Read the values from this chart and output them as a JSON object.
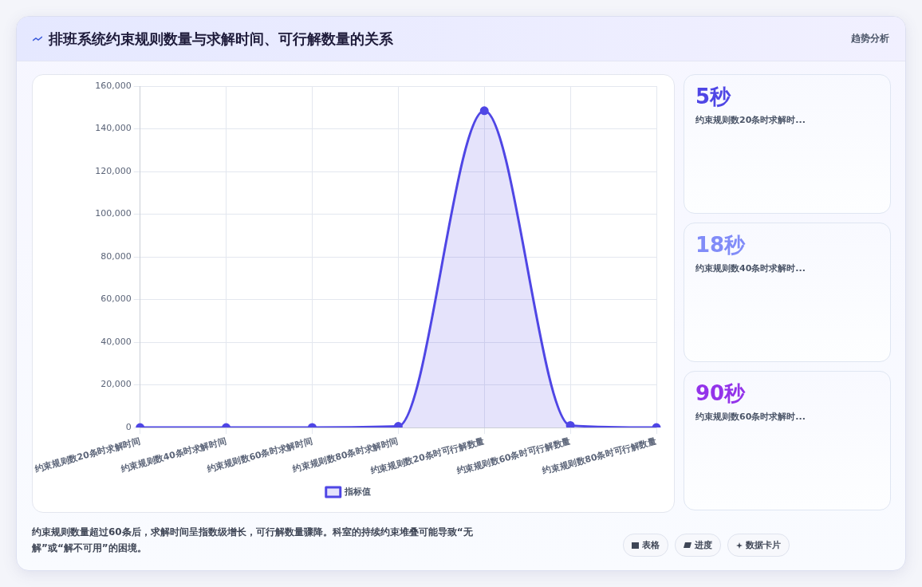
{
  "chart_data": [
    {
      "type": "area",
      "title": "排班系统约束规则数量与求解时间、可行解数量的关系",
      "categories": [
        "约束规则数20条时求解时间",
        "约束规则数40条时求解时间",
        "约束规则数60条时求解时间",
        "约束规则数80条时求解时间",
        "约束规则数20条时可行解数量",
        "约束规则数60条时可行解数量",
        "约束规则数80条时可行解数量"
      ],
      "series": [
        {
          "name": "指标值",
          "color": "#4f46e5",
          "values": [
            5,
            18,
            90,
            600,
            148500,
            1000,
            0
          ]
        }
      ],
      "ylim": [
        0,
        160000
      ],
      "yticks": [
        0,
        {
          "value": 20000,
          "label": "20,000"
        },
        {
          "value": 40000,
          "label": "40,000"
        },
        {
          "value": 60000,
          "label": "60,000"
        },
        {
          "value": 80000,
          "label": "80,000"
        },
        {
          "value": 100000,
          "label": "100,000"
        },
        {
          "value": 120000,
          "label": "120,000"
        },
        {
          "value": 140000,
          "label": "140,000"
        },
        {
          "value": 160000,
          "label": "160,000"
        }
      ],
      "grid": true,
      "legend": "bottom",
      "marker": "circle",
      "annotations": [
        "约束规则数量超过60条后，求解时间呈指数级增长，可行解数量骤降。科室的持续约束堆叠可能导致“无解”或“解不可用”的困境。",
        "表格",
        "进度",
        "数据卡片"
      ]
    },
    {
      "type": "other",
      "title": "趋势分析",
      "annotations": [
        "5秒",
        "约束规则数20条时求解时...",
        "18秒",
        "约束规则数40条时求解时...",
        "90秒",
        "约束规则数60条时求解时..."
      ]
    }
  ]
}
